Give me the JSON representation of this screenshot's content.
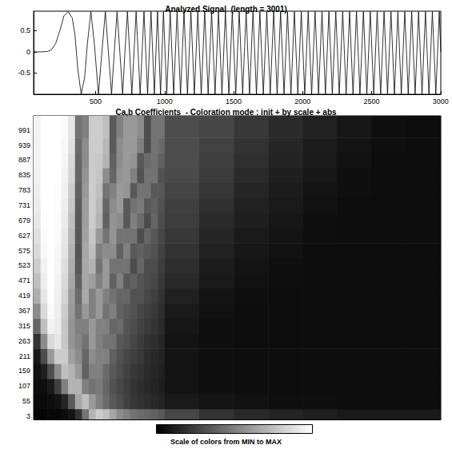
{
  "chart_data": [
    {
      "type": "line",
      "title": "Analyzed Signal  (length = 3001)",
      "color": "#000000",
      "grid": false,
      "xlim": [
        50,
        3001
      ],
      "ylim": [
        -1,
        0.96
      ],
      "xticks": [
        500,
        1000,
        1500,
        2000,
        2500,
        3000
      ],
      "yticks": [
        -0.5,
        0,
        0.5
      ],
      "x": [
        50,
        100,
        150,
        180,
        210,
        240,
        270,
        300,
        330,
        350,
        370,
        395,
        420,
        440,
        465,
        490,
        520,
        545,
        570,
        592,
        615,
        635,
        655,
        675,
        695,
        712,
        730,
        746,
        762,
        793,
        822,
        850,
        876,
        901,
        925,
        948,
        970,
        991,
        1015,
        1040,
        1065,
        1090,
        1115,
        1140,
        1165,
        1190,
        1215,
        1240,
        1265,
        1290,
        1315,
        1340,
        1365,
        1390,
        1415,
        1440,
        1465,
        1490,
        1515,
        1540,
        1565,
        1590,
        1615,
        1640,
        1665,
        1690,
        1715,
        1740,
        1765,
        1790,
        1815,
        1840,
        1865,
        1890,
        1915,
        1940,
        1965,
        1990,
        2015,
        2040,
        2065,
        2090,
        2115,
        2140,
        2165,
        2190,
        2215,
        2240,
        2265,
        2290,
        2315,
        2340,
        2365,
        2390,
        2415,
        2440,
        2465,
        2490,
        2515,
        2540,
        2565,
        2590,
        2615,
        2640,
        2665,
        2690,
        2715,
        2740,
        2765,
        2790,
        2815,
        2840,
        2865,
        2890,
        2915,
        2940,
        2965,
        2990,
        3001
      ],
      "values": [
        0,
        0,
        0.01,
        0.05,
        0.2,
        0.5,
        0.85,
        0.95,
        0.8,
        0.4,
        -0.4,
        -1,
        -0.6,
        0.2,
        0.95,
        0.2,
        -1,
        0,
        0.95,
        0,
        -1,
        0,
        0.95,
        0,
        -1,
        0,
        0.95,
        0,
        -1,
        0.95,
        -1,
        0.95,
        -1,
        0.95,
        -1,
        0.95,
        -1,
        0.95,
        -1,
        0.95,
        -1,
        0.95,
        -1,
        0.95,
        -1,
        0.95,
        -1,
        0.95,
        -1,
        0.95,
        -1,
        0.95,
        -1,
        0.95,
        -1,
        0.95,
        -1,
        0.95,
        -1,
        0.95,
        -1,
        0.95,
        -1,
        0.95,
        -1,
        0.95,
        -1,
        0.95,
        -1,
        0.95,
        -1,
        0.95,
        -1,
        0.95,
        -1,
        0.95,
        -1,
        0.95,
        -1,
        0.95,
        -1,
        0.95,
        -1,
        0.95,
        -1,
        0.95,
        -1,
        0.95,
        -1,
        0.95,
        -1,
        0.95,
        -1,
        0.95,
        -1,
        0.95,
        -1,
        0.95,
        -1,
        0.95,
        -1,
        0.95,
        -1,
        0.95,
        -1,
        0.95,
        -1,
        0.95,
        -1,
        0.95,
        -1,
        0.95,
        -1,
        0.95,
        -1,
        0.95,
        -1,
        0.95,
        0
      ]
    },
    {
      "type": "heatmap",
      "title": "Ca,b Coefficients  - Coloration mode : init + by scale + abs",
      "grid": false,
      "tick_labels": "y",
      "xlim": [
        50,
        3001
      ],
      "ylim": [
        -8,
        1040
      ],
      "yticks": [
        3,
        55,
        107,
        159,
        211,
        263,
        315,
        367,
        419,
        471,
        523,
        575,
        627,
        679,
        731,
        783,
        835,
        887,
        939,
        991
      ],
      "x_edges": [
        50,
        100,
        150,
        200,
        250,
        300,
        350,
        400,
        450,
        500,
        550,
        600,
        650,
        700,
        750,
        800,
        850,
        900,
        950,
        1000,
        1250,
        1500,
        1750,
        2000,
        2250,
        2500,
        2750,
        3001
      ],
      "y_edges": [
        -8,
        29,
        81,
        133,
        185,
        237,
        289,
        341,
        393,
        445,
        497,
        549,
        601,
        653,
        705,
        757,
        809,
        861,
        913,
        965,
        1040
      ],
      "cells": [
        [
          0.02,
          0.02,
          0.03,
          0.03,
          0.05,
          0.08,
          0.2,
          0.45,
          0.7,
          0.8,
          0.75,
          0.65,
          0.55,
          0.5,
          0.45,
          0.42,
          0.4,
          0.38,
          0.35,
          0.28,
          0.2,
          0.16,
          0.14,
          0.12,
          0.1,
          0.1,
          0.1
        ],
        [
          0.04,
          0.04,
          0.05,
          0.08,
          0.15,
          0.35,
          0.65,
          0.75,
          0.6,
          0.5,
          0.42,
          0.35,
          0.3,
          0.25,
          0.22,
          0.2,
          0.18,
          0.16,
          0.14,
          0.1,
          0.08,
          0.07,
          0.06,
          0.06,
          0.05,
          0.05,
          0.05
        ],
        [
          0.05,
          0.06,
          0.1,
          0.25,
          0.5,
          0.7,
          0.7,
          0.5,
          0.45,
          0.48,
          0.4,
          0.32,
          0.28,
          0.24,
          0.2,
          0.18,
          0.16,
          0.14,
          0.12,
          0.08,
          0.06,
          0.05,
          0.05,
          0.05,
          0.05,
          0.05,
          0.05
        ],
        [
          0.06,
          0.12,
          0.3,
          0.55,
          0.75,
          0.7,
          0.6,
          0.38,
          0.5,
          0.5,
          0.42,
          0.35,
          0.3,
          0.26,
          0.22,
          0.2,
          0.17,
          0.15,
          0.13,
          0.08,
          0.06,
          0.05,
          0.05,
          0.05,
          0.05,
          0.05,
          0.05
        ],
        [
          0.1,
          0.3,
          0.6,
          0.8,
          0.8,
          0.62,
          0.55,
          0.4,
          0.55,
          0.5,
          0.5,
          0.38,
          0.32,
          0.28,
          0.25,
          0.22,
          0.18,
          0.16,
          0.14,
          0.08,
          0.06,
          0.05,
          0.05,
          0.05,
          0.05,
          0.05,
          0.05
        ],
        [
          0.2,
          0.55,
          0.85,
          0.9,
          0.78,
          0.58,
          0.52,
          0.45,
          0.6,
          0.5,
          0.45,
          0.45,
          0.35,
          0.32,
          0.28,
          0.24,
          0.2,
          0.18,
          0.15,
          0.08,
          0.06,
          0.05,
          0.05,
          0.05,
          0.05,
          0.05,
          0.05
        ],
        [
          0.4,
          0.75,
          0.95,
          0.92,
          0.78,
          0.58,
          0.5,
          0.5,
          0.6,
          0.5,
          0.5,
          0.4,
          0.42,
          0.33,
          0.3,
          0.26,
          0.23,
          0.2,
          0.17,
          0.09,
          0.06,
          0.05,
          0.05,
          0.05,
          0.05,
          0.05,
          0.05
        ],
        [
          0.55,
          0.85,
          0.98,
          0.93,
          0.8,
          0.6,
          0.45,
          0.6,
          0.5,
          0.6,
          0.45,
          0.5,
          0.38,
          0.35,
          0.32,
          0.28,
          0.25,
          0.22,
          0.18,
          0.1,
          0.07,
          0.05,
          0.05,
          0.05,
          0.05,
          0.05,
          0.05
        ],
        [
          0.68,
          0.9,
          1,
          0.94,
          0.83,
          0.62,
          0.42,
          0.66,
          0.5,
          0.6,
          0.5,
          0.45,
          0.4,
          0.4,
          0.32,
          0.32,
          0.28,
          0.25,
          0.2,
          0.13,
          0.08,
          0.06,
          0.05,
          0.05,
          0.05,
          0.05,
          0.05
        ],
        [
          0.75,
          0.93,
          1,
          0.95,
          0.85,
          0.65,
          0.38,
          0.66,
          0.62,
          0.5,
          0.6,
          0.38,
          0.5,
          0.35,
          0.38,
          0.33,
          0.3,
          0.28,
          0.22,
          0.16,
          0.1,
          0.07,
          0.06,
          0.05,
          0.05,
          0.05,
          0.05
        ],
        [
          0.8,
          0.95,
          1,
          0.96,
          0.87,
          0.68,
          0.35,
          0.66,
          0.7,
          0.45,
          0.6,
          0.45,
          0.45,
          0.45,
          0.3,
          0.4,
          0.3,
          0.3,
          0.24,
          0.18,
          0.11,
          0.08,
          0.06,
          0.05,
          0.05,
          0.05,
          0.05
        ],
        [
          0.85,
          0.97,
          1,
          0.97,
          0.89,
          0.7,
          0.33,
          0.65,
          0.75,
          0.5,
          0.55,
          0.55,
          0.38,
          0.5,
          0.35,
          0.38,
          0.35,
          0.32,
          0.26,
          0.2,
          0.13,
          0.09,
          0.07,
          0.05,
          0.05,
          0.05,
          0.05
        ],
        [
          0.88,
          0.98,
          1,
          0.98,
          0.9,
          0.72,
          0.34,
          0.63,
          0.78,
          0.6,
          0.45,
          0.58,
          0.45,
          0.45,
          0.45,
          0.3,
          0.4,
          0.34,
          0.28,
          0.22,
          0.15,
          0.1,
          0.08,
          0.06,
          0.05,
          0.05,
          0.05
        ],
        [
          0.9,
          0.99,
          1,
          0.98,
          0.92,
          0.75,
          0.35,
          0.62,
          0.8,
          0.7,
          0.38,
          0.58,
          0.55,
          0.35,
          0.5,
          0.42,
          0.3,
          0.4,
          0.3,
          0.24,
          0.17,
          0.12,
          0.09,
          0.06,
          0.05,
          0.05,
          0.05
        ],
        [
          0.92,
          1,
          1,
          0.99,
          0.93,
          0.78,
          0.36,
          0.62,
          0.8,
          0.72,
          0.4,
          0.55,
          0.6,
          0.35,
          0.45,
          0.48,
          0.35,
          0.38,
          0.32,
          0.25,
          0.19,
          0.13,
          0.1,
          0.07,
          0.05,
          0.05,
          0.05
        ],
        [
          0.93,
          1,
          1,
          0.99,
          0.94,
          0.8,
          0.38,
          0.6,
          0.8,
          0.75,
          0.45,
          0.5,
          0.6,
          0.58,
          0.35,
          0.45,
          0.45,
          0.35,
          0.35,
          0.27,
          0.21,
          0.15,
          0.11,
          0.08,
          0.06,
          0.05,
          0.05
        ],
        [
          0.94,
          1,
          1,
          1,
          0.95,
          0.83,
          0.4,
          0.58,
          0.8,
          0.77,
          0.55,
          0.4,
          0.58,
          0.6,
          0.5,
          0.32,
          0.45,
          0.45,
          0.32,
          0.29,
          0.23,
          0.17,
          0.12,
          0.09,
          0.06,
          0.05,
          0.05
        ],
        [
          0.95,
          1,
          1,
          1,
          0.96,
          0.85,
          0.4,
          0.55,
          0.8,
          0.78,
          0.7,
          0.38,
          0.55,
          0.6,
          0.58,
          0.35,
          0.42,
          0.45,
          0.38,
          0.3,
          0.25,
          0.19,
          0.14,
          0.1,
          0.07,
          0.05,
          0.05
        ],
        [
          0.95,
          1,
          1,
          1,
          0.97,
          0.88,
          0.42,
          0.55,
          0.8,
          0.8,
          0.72,
          0.35,
          0.55,
          0.6,
          0.6,
          0.5,
          0.3,
          0.45,
          0.42,
          0.3,
          0.26,
          0.2,
          0.15,
          0.11,
          0.08,
          0.06,
          0.05
        ],
        [
          0.95,
          1,
          1,
          1,
          0.98,
          0.9,
          0.45,
          0.5,
          0.8,
          0.8,
          0.75,
          0.35,
          0.5,
          0.6,
          0.6,
          0.55,
          0.3,
          0.45,
          0.45,
          0.3,
          0.28,
          0.22,
          0.17,
          0.13,
          0.09,
          0.06,
          0.05
        ]
      ],
      "colorbar": {
        "label": "Scale of colors from MIN to MAX",
        "range": [
          0,
          1
        ]
      }
    }
  ]
}
